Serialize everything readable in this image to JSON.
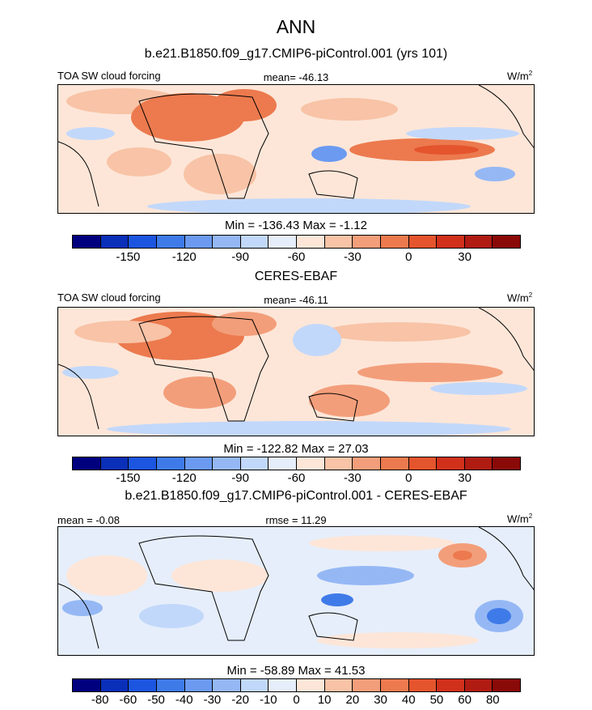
{
  "season": "ANN",
  "colors": {
    "palette": [
      "#00007f",
      "#0a2fb8",
      "#1c56e0",
      "#3f7be8",
      "#6b9af0",
      "#95b8f5",
      "#c2d8fa",
      "#e6eefb",
      "#fde6d8",
      "#f8c3a6",
      "#f39e7a",
      "#ec7a4e",
      "#e4542d",
      "#d1301b",
      "#b01b12",
      "#8a0a08"
    ]
  },
  "panels": [
    {
      "header": "b.e21.B1850.f09_g17.CMIP6-piControl.001 (yrs 101)",
      "left_label": "TOA SW cloud forcing",
      "center_label": "mean= -46.13",
      "units": "W/m",
      "units_sup": "2",
      "stats": "Min = -136.43 Max =  -1.12",
      "colorbar_ticks": [
        "-150",
        "-120",
        "-90",
        "-60",
        "-30",
        "0",
        "30"
      ]
    },
    {
      "header": "CERES-EBAF",
      "left_label": "TOA SW cloud forcing",
      "center_label": "mean= -46.11",
      "units": "W/m",
      "units_sup": "2",
      "stats": "Min = -122.82 Max =  27.03",
      "colorbar_ticks": [
        "-150",
        "-120",
        "-90",
        "-60",
        "-30",
        "0",
        "30"
      ]
    },
    {
      "header": "b.e21.B1850.f09_g17.CMIP6-piControl.001 - CERES-EBAF",
      "left_label": "mean =  -0.08",
      "center_label": "rmse =  11.29",
      "units": "W/m",
      "units_sup": "2",
      "stats": "Min = -58.89 Max =  41.53",
      "colorbar_ticks": [
        "-80",
        "-60",
        "-50",
        "-40",
        "-30",
        "-20",
        "-10",
        "0",
        "10",
        "20",
        "30",
        "40",
        "50",
        "60",
        "80"
      ]
    }
  ],
  "chart_data": [
    {
      "type": "heatmap",
      "title": "b.e21.B1850.f09_g17.CMIP6-piControl.001 (yrs 101)",
      "variable": "TOA SW cloud forcing",
      "units": "W/m2",
      "mean": -46.13,
      "min": -136.43,
      "max": -1.12,
      "contour_levels": [
        -165,
        -150,
        -135,
        -120,
        -105,
        -90,
        -75,
        -60,
        -45,
        -30,
        -15,
        0,
        15,
        30,
        45
      ]
    },
    {
      "type": "heatmap",
      "title": "CERES-EBAF",
      "variable": "TOA SW cloud forcing",
      "units": "W/m2",
      "mean": -46.11,
      "min": -122.82,
      "max": 27.03,
      "contour_levels": [
        -165,
        -150,
        -135,
        -120,
        -105,
        -90,
        -75,
        -60,
        -45,
        -30,
        -15,
        0,
        15,
        30,
        45
      ]
    },
    {
      "type": "heatmap",
      "title": "b.e21.B1850.f09_g17.CMIP6-piControl.001 - CERES-EBAF",
      "units": "W/m2",
      "mean": -0.08,
      "rmse": 11.29,
      "min": -58.89,
      "max": 41.53,
      "contour_levels": [
        -80,
        -60,
        -50,
        -40,
        -30,
        -20,
        -10,
        0,
        10,
        20,
        30,
        40,
        50,
        60,
        80
      ]
    }
  ]
}
